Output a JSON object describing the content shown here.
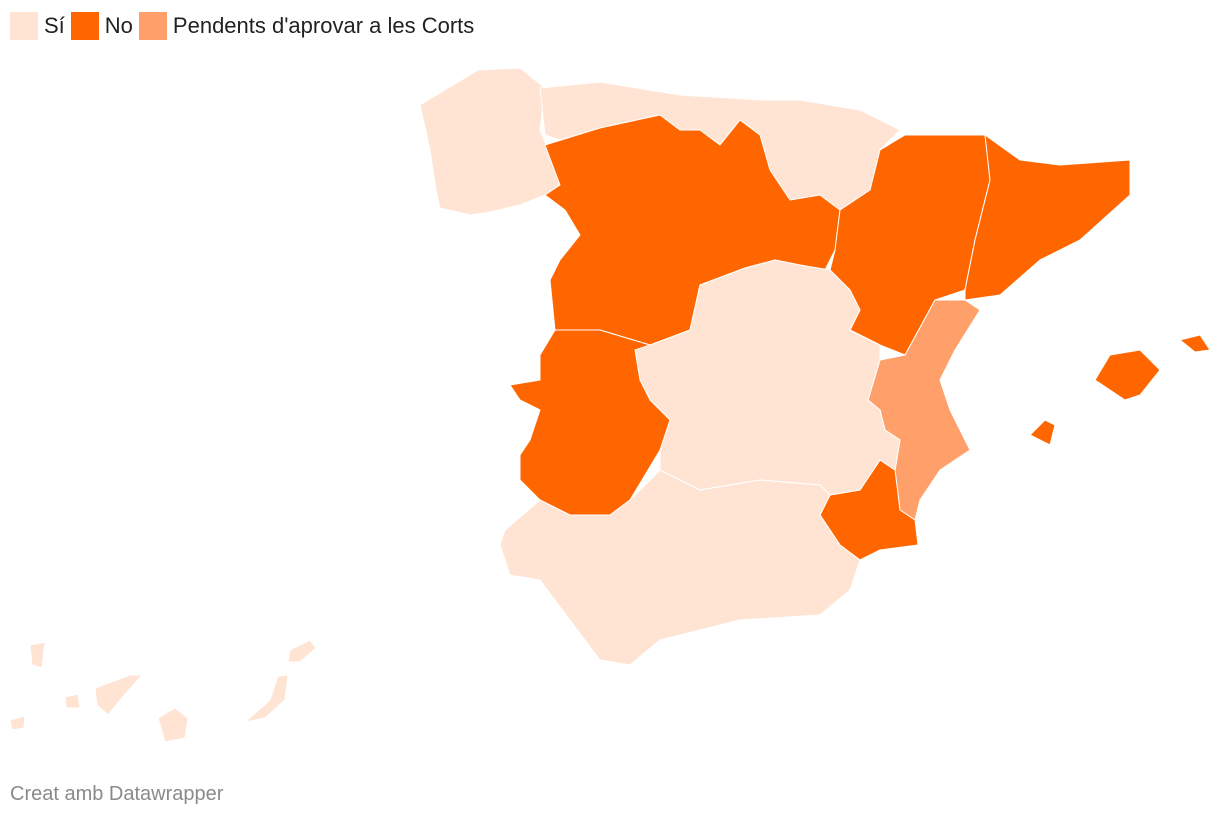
{
  "legend": {
    "items": [
      {
        "label": "Sí",
        "color": "#ffe4d4"
      },
      {
        "label": "No",
        "color": "#ff6600"
      },
      {
        "label": "Pendents d'aprovar a les Corts",
        "color": "#ffa06a"
      }
    ]
  },
  "footer": {
    "credit": "Creat amb Datawrapper"
  }
}
